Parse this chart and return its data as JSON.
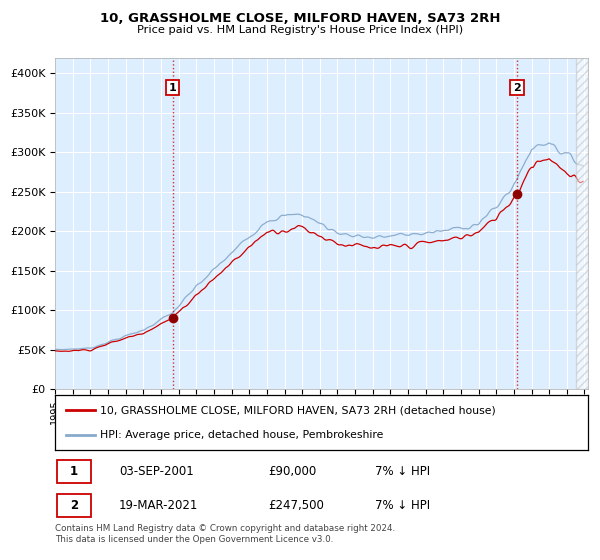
{
  "title": "10, GRASSHOLME CLOSE, MILFORD HAVEN, SA73 2RH",
  "subtitle": "Price paid vs. HM Land Registry's House Price Index (HPI)",
  "legend_line1": "10, GRASSHOLME CLOSE, MILFORD HAVEN, SA73 2RH (detached house)",
  "legend_line2": "HPI: Average price, detached house, Pembrokeshire",
  "footnote1": "Contains HM Land Registry data © Crown copyright and database right 2024.",
  "footnote2": "This data is licensed under the Open Government Licence v3.0.",
  "transaction1_label": "1",
  "transaction1_date": "03-SEP-2001",
  "transaction1_price": "£90,000",
  "transaction1_hpi": "7% ↓ HPI",
  "transaction2_label": "2",
  "transaction2_date": "19-MAR-2021",
  "transaction2_price": "£247,500",
  "transaction2_hpi": "7% ↓ HPI",
  "price_color": "#cc0000",
  "hpi_color": "#88aacc",
  "vline_color": "#cc0000",
  "bg_color": "#ffffff",
  "plot_bg_color": "#ddeeff",
  "grid_color": "#ffffff",
  "ylim_min": 0,
  "ylim_max": 420000,
  "yticks": [
    0,
    50000,
    100000,
    150000,
    200000,
    250000,
    300000,
    350000,
    400000
  ],
  "ytick_labels": [
    "£0",
    "£50K",
    "£100K",
    "£150K",
    "£200K",
    "£250K",
    "£300K",
    "£350K",
    "£400K"
  ],
  "start_year": 1995,
  "end_year": 2025,
  "t1_year_float": 2001.667,
  "t1_price": 90000,
  "t2_year_float": 2021.167,
  "t2_price": 247500
}
